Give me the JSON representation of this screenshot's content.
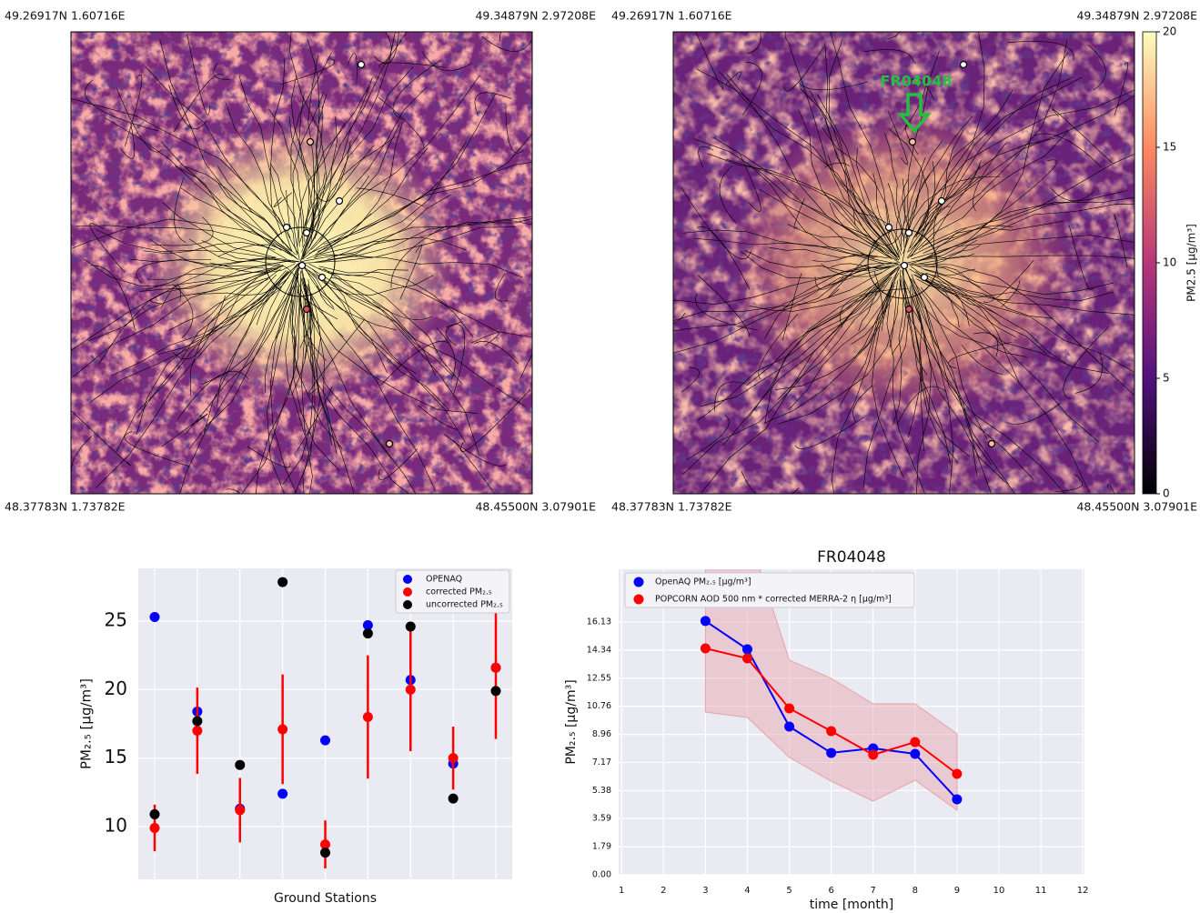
{
  "maps": [
    {
      "corners": {
        "top_left": "49.26917N 1.60716E",
        "top_right": "49.34879N 2.97208E",
        "bottom_left": "48.37783N 1.73782E",
        "bottom_right": "48.45500N 3.07901E"
      }
    },
    {
      "corners": {
        "top_left": "49.26917N 1.60716E",
        "top_right": "49.34879N 2.97208E",
        "bottom_left": "48.37783N 1.73782E",
        "bottom_right": "48.45500N 3.07901E"
      },
      "annotation": "FR04048"
    }
  ],
  "colorbar": {
    "label": "PM2.5 [μg/m³]",
    "ylim": [
      0,
      20
    ],
    "yticks": [
      0,
      5,
      10,
      15,
      20
    ]
  },
  "chart_data": [
    {
      "type": "scatter",
      "xlabel": "Ground Stations",
      "ylabel": "PM₂.₅ [μg/m³]",
      "categories": [
        null,
        null,
        null,
        null,
        null,
        null,
        null,
        null,
        null
      ],
      "ylim": [
        6.15,
        28.85
      ],
      "yticks": [
        10,
        15,
        20,
        25
      ],
      "grid": true,
      "legend": "upper right",
      "series": [
        {
          "name": "OPENAQ",
          "color": "#0000ff",
          "values": [
            25.3,
            18.4,
            11.3,
            12.4,
            16.3,
            24.7,
            20.7,
            14.6,
            21.6
          ]
        },
        {
          "name": "corrected PM₂.₅",
          "color": "#ff0000",
          "values": [
            9.9,
            17.0,
            11.2,
            17.1,
            8.7,
            18.0,
            20.0,
            15.0,
            21.6
          ],
          "errors": [
            1.7,
            3.15,
            2.35,
            4.0,
            1.75,
            4.5,
            4.5,
            2.3,
            5.2
          ]
        },
        {
          "name": "uncorrected PM₂.₅",
          "color": "#000000",
          "values": [
            10.9,
            17.7,
            14.5,
            27.85,
            8.1,
            24.1,
            24.6,
            12.05,
            19.9
          ]
        }
      ]
    },
    {
      "type": "line",
      "title": "FR04048",
      "xlabel": "time [month]",
      "ylabel": "PM₂.₅ [μg/m³]",
      "x": [
        3,
        4,
        5,
        6,
        7,
        8,
        9
      ],
      "xlim": [
        0.93,
        12.04
      ],
      "xticks": [
        1,
        2,
        3,
        4,
        5,
        6,
        7,
        8,
        9,
        10,
        11,
        12
      ],
      "ylim": [
        0,
        19.5
      ],
      "yticks": [
        {
          "value": 0,
          "label": "0.00"
        },
        1.79,
        3.59,
        5.38,
        7.17,
        8.96,
        10.76,
        12.55,
        14.34,
        16.13
      ],
      "grid": true,
      "legend": "upper left",
      "series": [
        {
          "name": "OpenAQ PM₂.₅ [μg/m³]",
          "color": "#0000ff",
          "values": [
            16.2,
            14.39,
            9.46,
            7.78,
            8.07,
            7.72,
            4.82
          ]
        },
        {
          "name": "POPCORN AOD 500 nm * corrected MERRA-2 η [μg/m³]",
          "color": "#ff0000",
          "values": [
            14.45,
            13.81,
            10.62,
            9.17,
            7.66,
            8.47,
            6.44
          ]
        }
      ],
      "band": {
        "color": "#e8a2aa",
        "lower": [
          10.39,
          10.04,
          7.49,
          5.98,
          4.7,
          6.04,
          4.12
        ],
        "upper": [
          22.5,
          22.0,
          13.7,
          12.54,
          10.91,
          10.91,
          9.0
        ]
      }
    }
  ]
}
